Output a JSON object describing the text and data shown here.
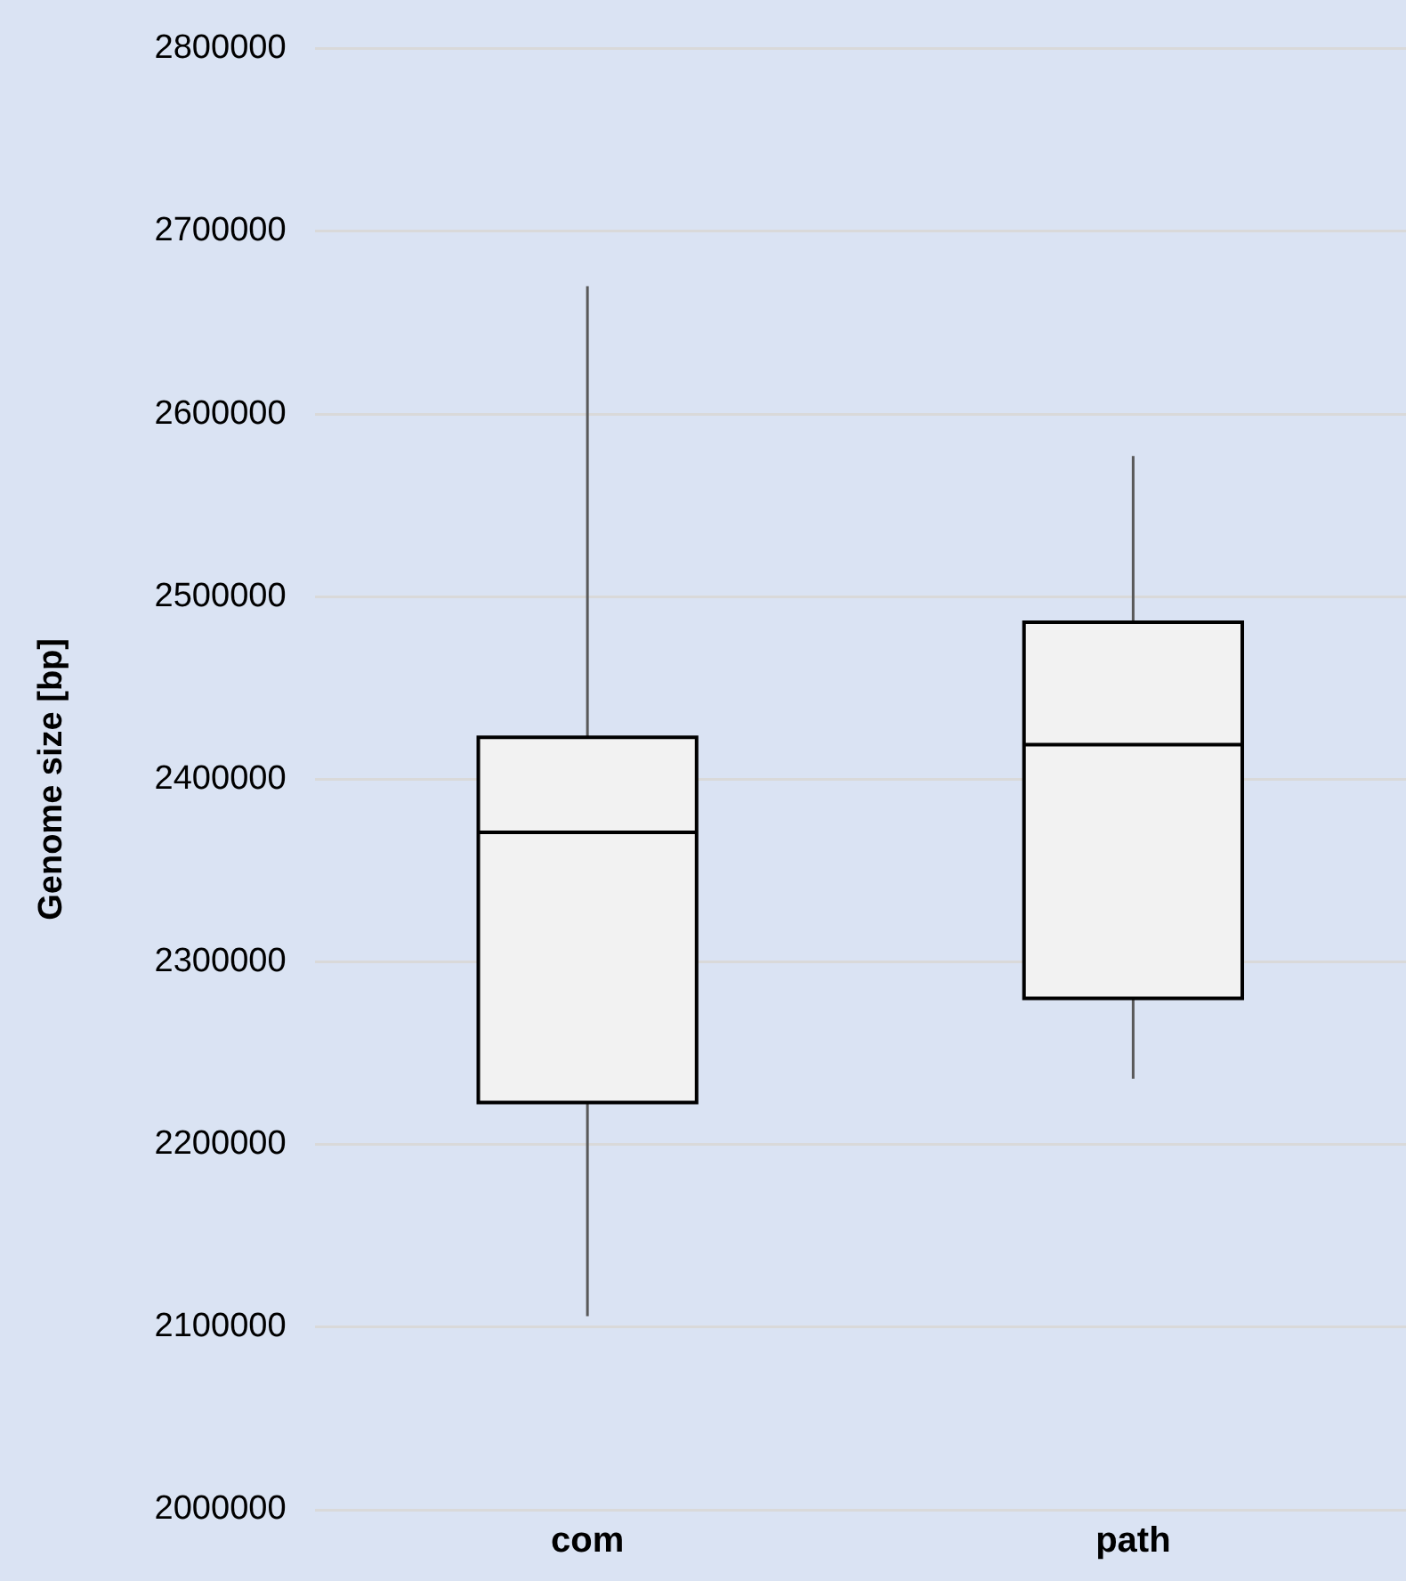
{
  "chart_data": {
    "type": "box",
    "ylabel": "Genome size [bp]",
    "categories": [
      "com",
      "path"
    ],
    "boxes": [
      {
        "low": 2106000,
        "q1": 2223000,
        "median": 2371000,
        "q3": 2423000,
        "high": 2670000
      },
      {
        "low": 2236000,
        "q1": 2280000,
        "median": 2419000,
        "q3": 2486000,
        "high": 2577000
      }
    ],
    "color": "#f2f2f2",
    "ylim": [
      2000000,
      2800000
    ],
    "yticks": [
      2000000,
      2100000,
      2200000,
      2300000,
      2400000,
      2500000,
      2600000,
      2700000,
      2800000
    ],
    "grid": "y"
  }
}
